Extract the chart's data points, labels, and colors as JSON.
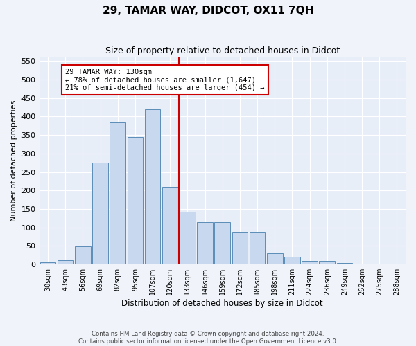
{
  "title": "29, TAMAR WAY, DIDCOT, OX11 7QH",
  "subtitle": "Size of property relative to detached houses in Didcot",
  "xlabel": "Distribution of detached houses by size in Didcot",
  "ylabel": "Number of detached properties",
  "categories": [
    "30sqm",
    "43sqm",
    "56sqm",
    "69sqm",
    "82sqm",
    "95sqm",
    "107sqm",
    "120sqm",
    "133sqm",
    "146sqm",
    "159sqm",
    "172sqm",
    "185sqm",
    "198sqm",
    "211sqm",
    "224sqm",
    "236sqm",
    "249sqm",
    "262sqm",
    "275sqm",
    "288sqm"
  ],
  "values": [
    5,
    12,
    48,
    275,
    385,
    345,
    420,
    210,
    143,
    115,
    115,
    88,
    88,
    30,
    20,
    10,
    10,
    3,
    2,
    1,
    2
  ],
  "bar_color": "#c8d8ee",
  "bar_edge_color": "#5b8db8",
  "vline_color": "#cc0000",
  "annotation_text": "29 TAMAR WAY: 130sqm\n← 78% of detached houses are smaller (1,647)\n21% of semi-detached houses are larger (454) →",
  "annotation_box_color": "#cc0000",
  "ylim": [
    0,
    560
  ],
  "yticks": [
    0,
    50,
    100,
    150,
    200,
    250,
    300,
    350,
    400,
    450,
    500,
    550
  ],
  "background_color": "#e8eef8",
  "fig_background": "#f0f4fa",
  "footer_line1": "Contains HM Land Registry data © Crown copyright and database right 2024.",
  "footer_line2": "Contains public sector information licensed under the Open Government Licence v3.0."
}
